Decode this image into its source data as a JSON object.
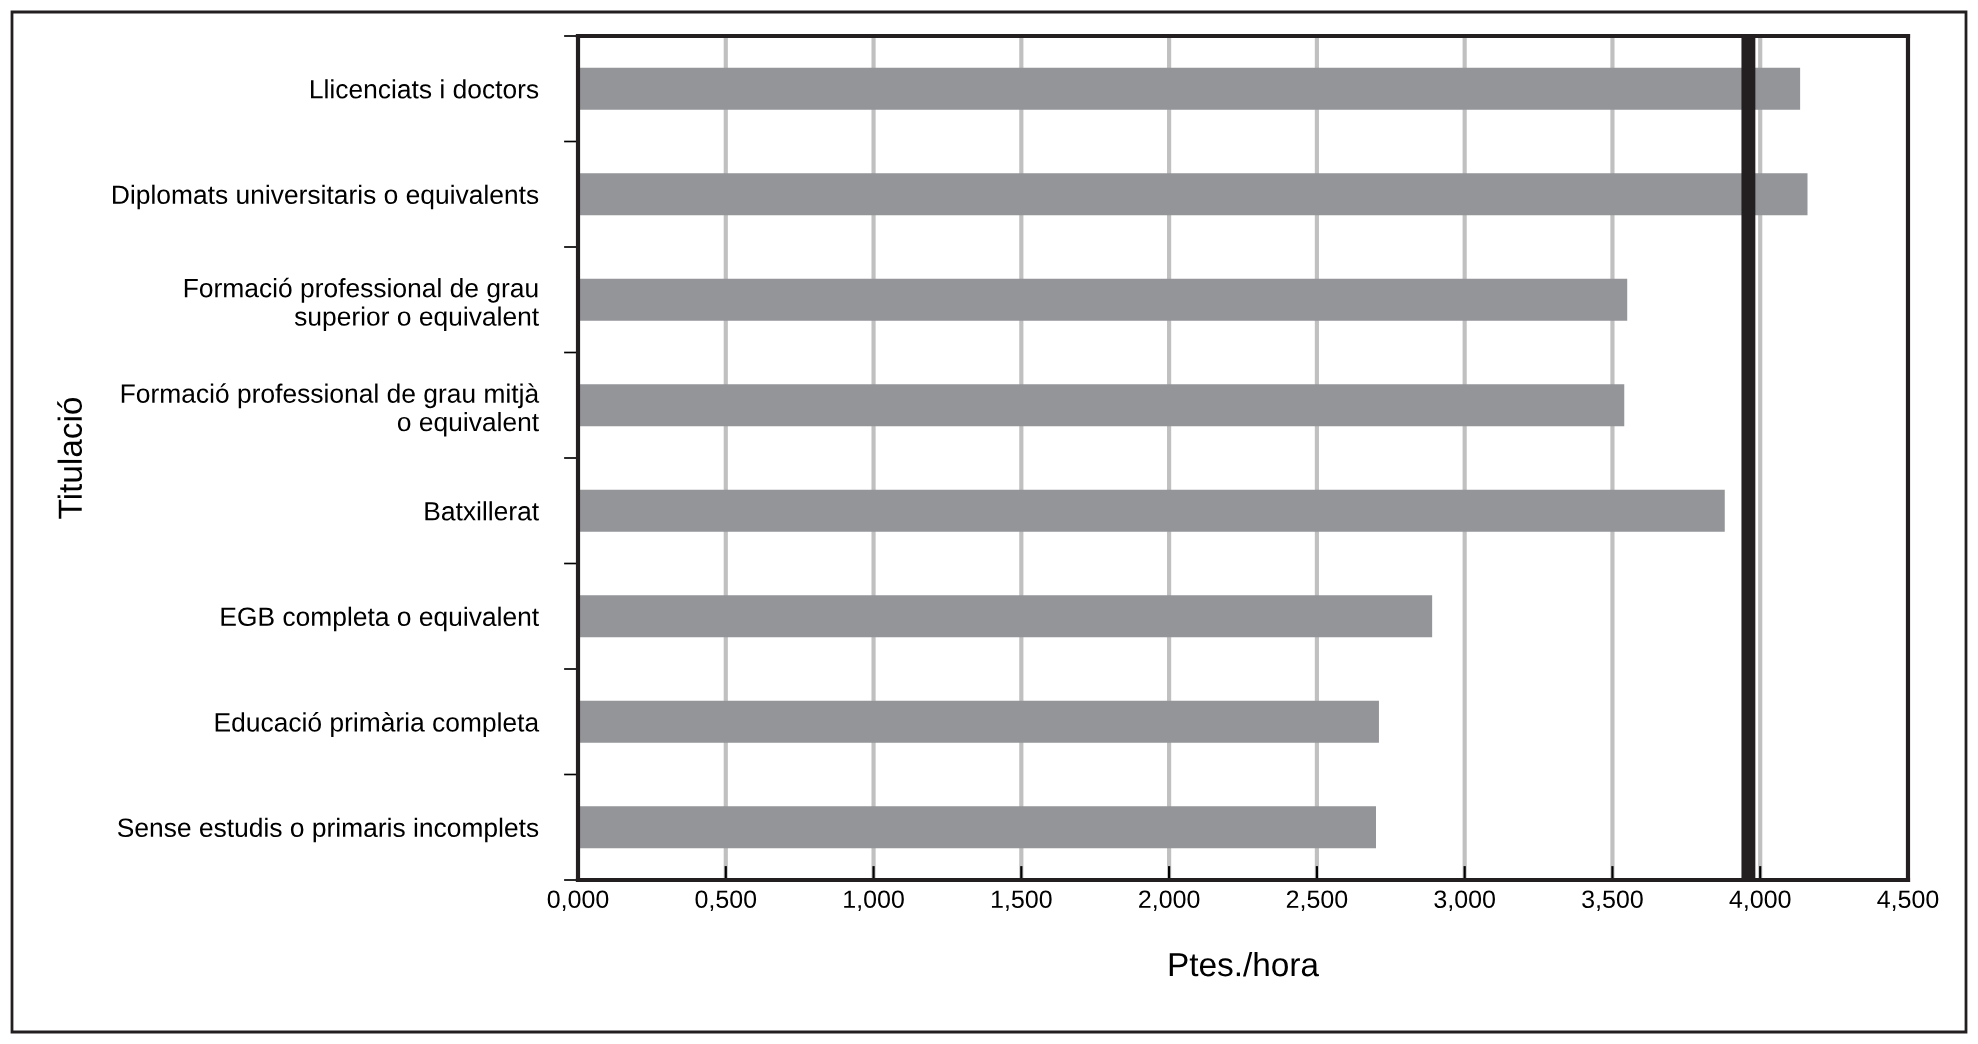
{
  "chart_data": {
    "type": "bar",
    "orientation": "horizontal",
    "xlabel": "Ptes./hora",
    "ylabel": "Titulació",
    "categories": [
      "Llicenciats i doctors",
      "Diplomats universitaris o equivalents",
      "Formació professional de grau\nsuperior o equivalent",
      "Formació professional de grau mitjà\no equivalent",
      "Batxillerat",
      "EGB completa o equivalent",
      "Educació primària completa",
      "Sense estudis o primaris incomplets"
    ],
    "values": [
      4.135,
      4.16,
      3.55,
      3.54,
      3.88,
      2.89,
      2.71,
      2.7
    ],
    "color": "#939598",
    "xlim": [
      0,
      4.5
    ],
    "xticks": [
      {
        "value": 0,
        "label": "0,000"
      },
      {
        "value": 0.5,
        "label": "0,500"
      },
      {
        "value": 1,
        "label": "1,000"
      },
      {
        "value": 1.5,
        "label": "1,500"
      },
      {
        "value": 2,
        "label": "2,000"
      },
      {
        "value": 2.5,
        "label": "2,500"
      },
      {
        "value": 3,
        "label": "3,000"
      },
      {
        "value": 3.5,
        "label": "3,500"
      },
      {
        "value": 4,
        "label": "4,000"
      },
      {
        "value": 4.5,
        "label": "4,500"
      }
    ],
    "ref_lines": [
      {
        "axis": "x",
        "value": 3.96,
        "color": "#231f20"
      }
    ],
    "grid": "x",
    "legend": false
  }
}
